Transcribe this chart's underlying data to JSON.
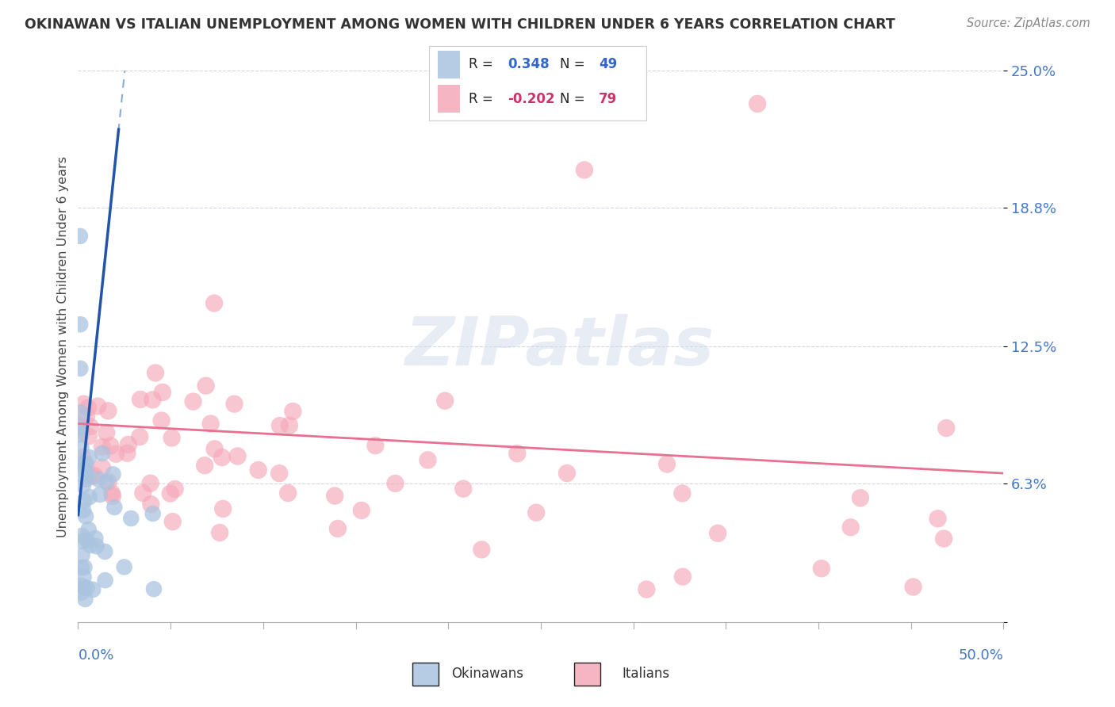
{
  "title": "OKINAWAN VS ITALIAN UNEMPLOYMENT AMONG WOMEN WITH CHILDREN UNDER 6 YEARS CORRELATION CHART",
  "source": "Source: ZipAtlas.com",
  "ylabel": "Unemployment Among Women with Children Under 6 years",
  "xmin": 0.0,
  "xmax": 0.5,
  "ymin": 0.0,
  "ymax": 0.25,
  "ytick_vals": [
    0.0,
    0.063,
    0.125,
    0.188,
    0.25
  ],
  "ytick_labels": [
    "",
    "6.3%",
    "12.5%",
    "18.8%",
    "25.0%"
  ],
  "blue_color": "#aac4e0",
  "pink_color": "#f5a8b8",
  "blue_line_color": "#2255aa",
  "pink_line_color": "#e87090",
  "blue_line_style": "solid",
  "blue_dashed_color": "#88aadd",
  "watermark_text": "ZIPatlas",
  "legend_R_blue": "0.348",
  "legend_N_blue": "49",
  "legend_R_pink": "-0.202",
  "legend_N_pink": "79"
}
